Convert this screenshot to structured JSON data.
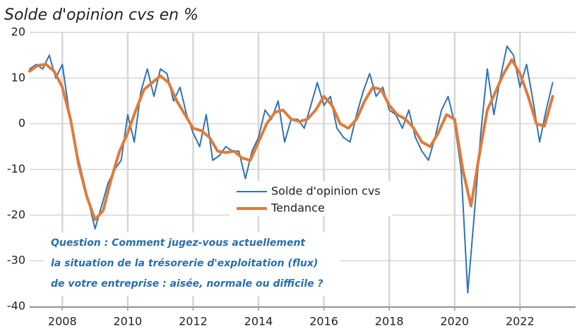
{
  "chart_data": {
    "type": "line",
    "title": "Solde d'opinion cvs en %",
    "annotations": [
      "Question : Comment jugez-vous actuellement",
      "la situation de la trésorerie d'exploitation (flux)",
      "de votre entreprise : aisée, normale ou difficile ?"
    ],
    "xlim": [
      2007,
      2023.7
    ],
    "xticks": [
      2008,
      2010,
      2012,
      2014,
      2016,
      2018,
      2020,
      2022
    ],
    "ylim": [
      -40,
      20
    ],
    "yticks": [
      -40,
      -30,
      -20,
      -10,
      0,
      10,
      20
    ],
    "grid": true,
    "series": [
      {
        "name": "Solde d'opinion cvs",
        "color": "#2e74b5",
        "width": 2,
        "x": [
          2007.0,
          2007.2,
          2007.4,
          2007.6,
          2007.8,
          2008.0,
          2008.2,
          2008.4,
          2008.6,
          2008.8,
          2009.0,
          2009.2,
          2009.4,
          2009.6,
          2009.8,
          2010.0,
          2010.2,
          2010.4,
          2010.6,
          2010.8,
          2011.0,
          2011.2,
          2011.4,
          2011.6,
          2011.8,
          2012.0,
          2012.2,
          2012.4,
          2012.6,
          2012.8,
          2013.0,
          2013.2,
          2013.4,
          2013.6,
          2013.8,
          2014.0,
          2014.2,
          2014.4,
          2014.6,
          2014.8,
          2015.0,
          2015.2,
          2015.4,
          2015.6,
          2015.8,
          2016.0,
          2016.2,
          2016.4,
          2016.6,
          2016.8,
          2017.0,
          2017.2,
          2017.4,
          2017.6,
          2017.8,
          2018.0,
          2018.2,
          2018.4,
          2018.6,
          2018.8,
          2019.0,
          2019.2,
          2019.4,
          2019.6,
          2019.8,
          2020.0,
          2020.2,
          2020.4,
          2020.6,
          2020.8,
          2021.0,
          2021.2,
          2021.4,
          2021.6,
          2021.8,
          2022.0,
          2022.2,
          2022.4,
          2022.6,
          2022.8,
          2023.0
        ],
        "values": [
          12,
          13,
          12,
          15,
          10,
          13,
          3,
          -5,
          -11,
          -17,
          -23,
          -18,
          -13,
          -10,
          -8,
          2,
          -4,
          7,
          12,
          6,
          12,
          11,
          5,
          8,
          2,
          -2,
          -5,
          2,
          -8,
          -7,
          -5,
          -6,
          -6,
          -12,
          -6,
          -3,
          3,
          1,
          5,
          -4,
          1,
          1,
          -1,
          4,
          9,
          4,
          6,
          -1,
          -3,
          -4,
          2,
          7,
          11,
          6,
          8,
          3,
          2,
          -1,
          3,
          -3,
          -6,
          -8,
          -3,
          3,
          6,
          0,
          -10,
          -37,
          -20,
          -2,
          12,
          2,
          10,
          17,
          15,
          8,
          13,
          5,
          -4,
          3,
          9
        ]
      },
      {
        "name": "Tendance",
        "color": "#e07b39",
        "width": 4,
        "x": [
          2007.0,
          2007.25,
          2007.5,
          2007.75,
          2008.0,
          2008.25,
          2008.5,
          2008.75,
          2009.0,
          2009.25,
          2009.5,
          2009.75,
          2010.0,
          2010.25,
          2010.5,
          2010.75,
          2011.0,
          2011.25,
          2011.5,
          2011.75,
          2012.0,
          2012.25,
          2012.5,
          2012.75,
          2013.0,
          2013.25,
          2013.5,
          2013.75,
          2014.0,
          2014.25,
          2014.5,
          2014.75,
          2015.0,
          2015.25,
          2015.5,
          2015.75,
          2016.0,
          2016.25,
          2016.5,
          2016.75,
          2017.0,
          2017.25,
          2017.5,
          2017.75,
          2018.0,
          2018.25,
          2018.5,
          2018.75,
          2019.0,
          2019.25,
          2019.5,
          2019.75,
          2020.0,
          2020.25,
          2020.5,
          2020.75,
          2021.0,
          2021.25,
          2021.5,
          2021.75,
          2022.0,
          2022.25,
          2022.5,
          2022.75,
          2023.0
        ],
        "values": [
          11.5,
          12.8,
          13,
          11.5,
          8,
          1,
          -9,
          -16,
          -21,
          -19,
          -12,
          -6,
          -2,
          3,
          7.5,
          9,
          10.5,
          9,
          5,
          2,
          -1,
          -1.5,
          -3,
          -6,
          -6.3,
          -6,
          -7.5,
          -8,
          -4,
          0,
          2.5,
          3,
          1,
          0.5,
          1,
          3,
          6,
          4,
          0,
          -1,
          1,
          5,
          8,
          7.5,
          4,
          2,
          1,
          -1,
          -4,
          -5,
          -2,
          2,
          1,
          -10,
          -18,
          -7,
          3,
          7,
          11,
          14,
          11,
          6,
          0,
          -0.5,
          6
        ]
      }
    ]
  }
}
